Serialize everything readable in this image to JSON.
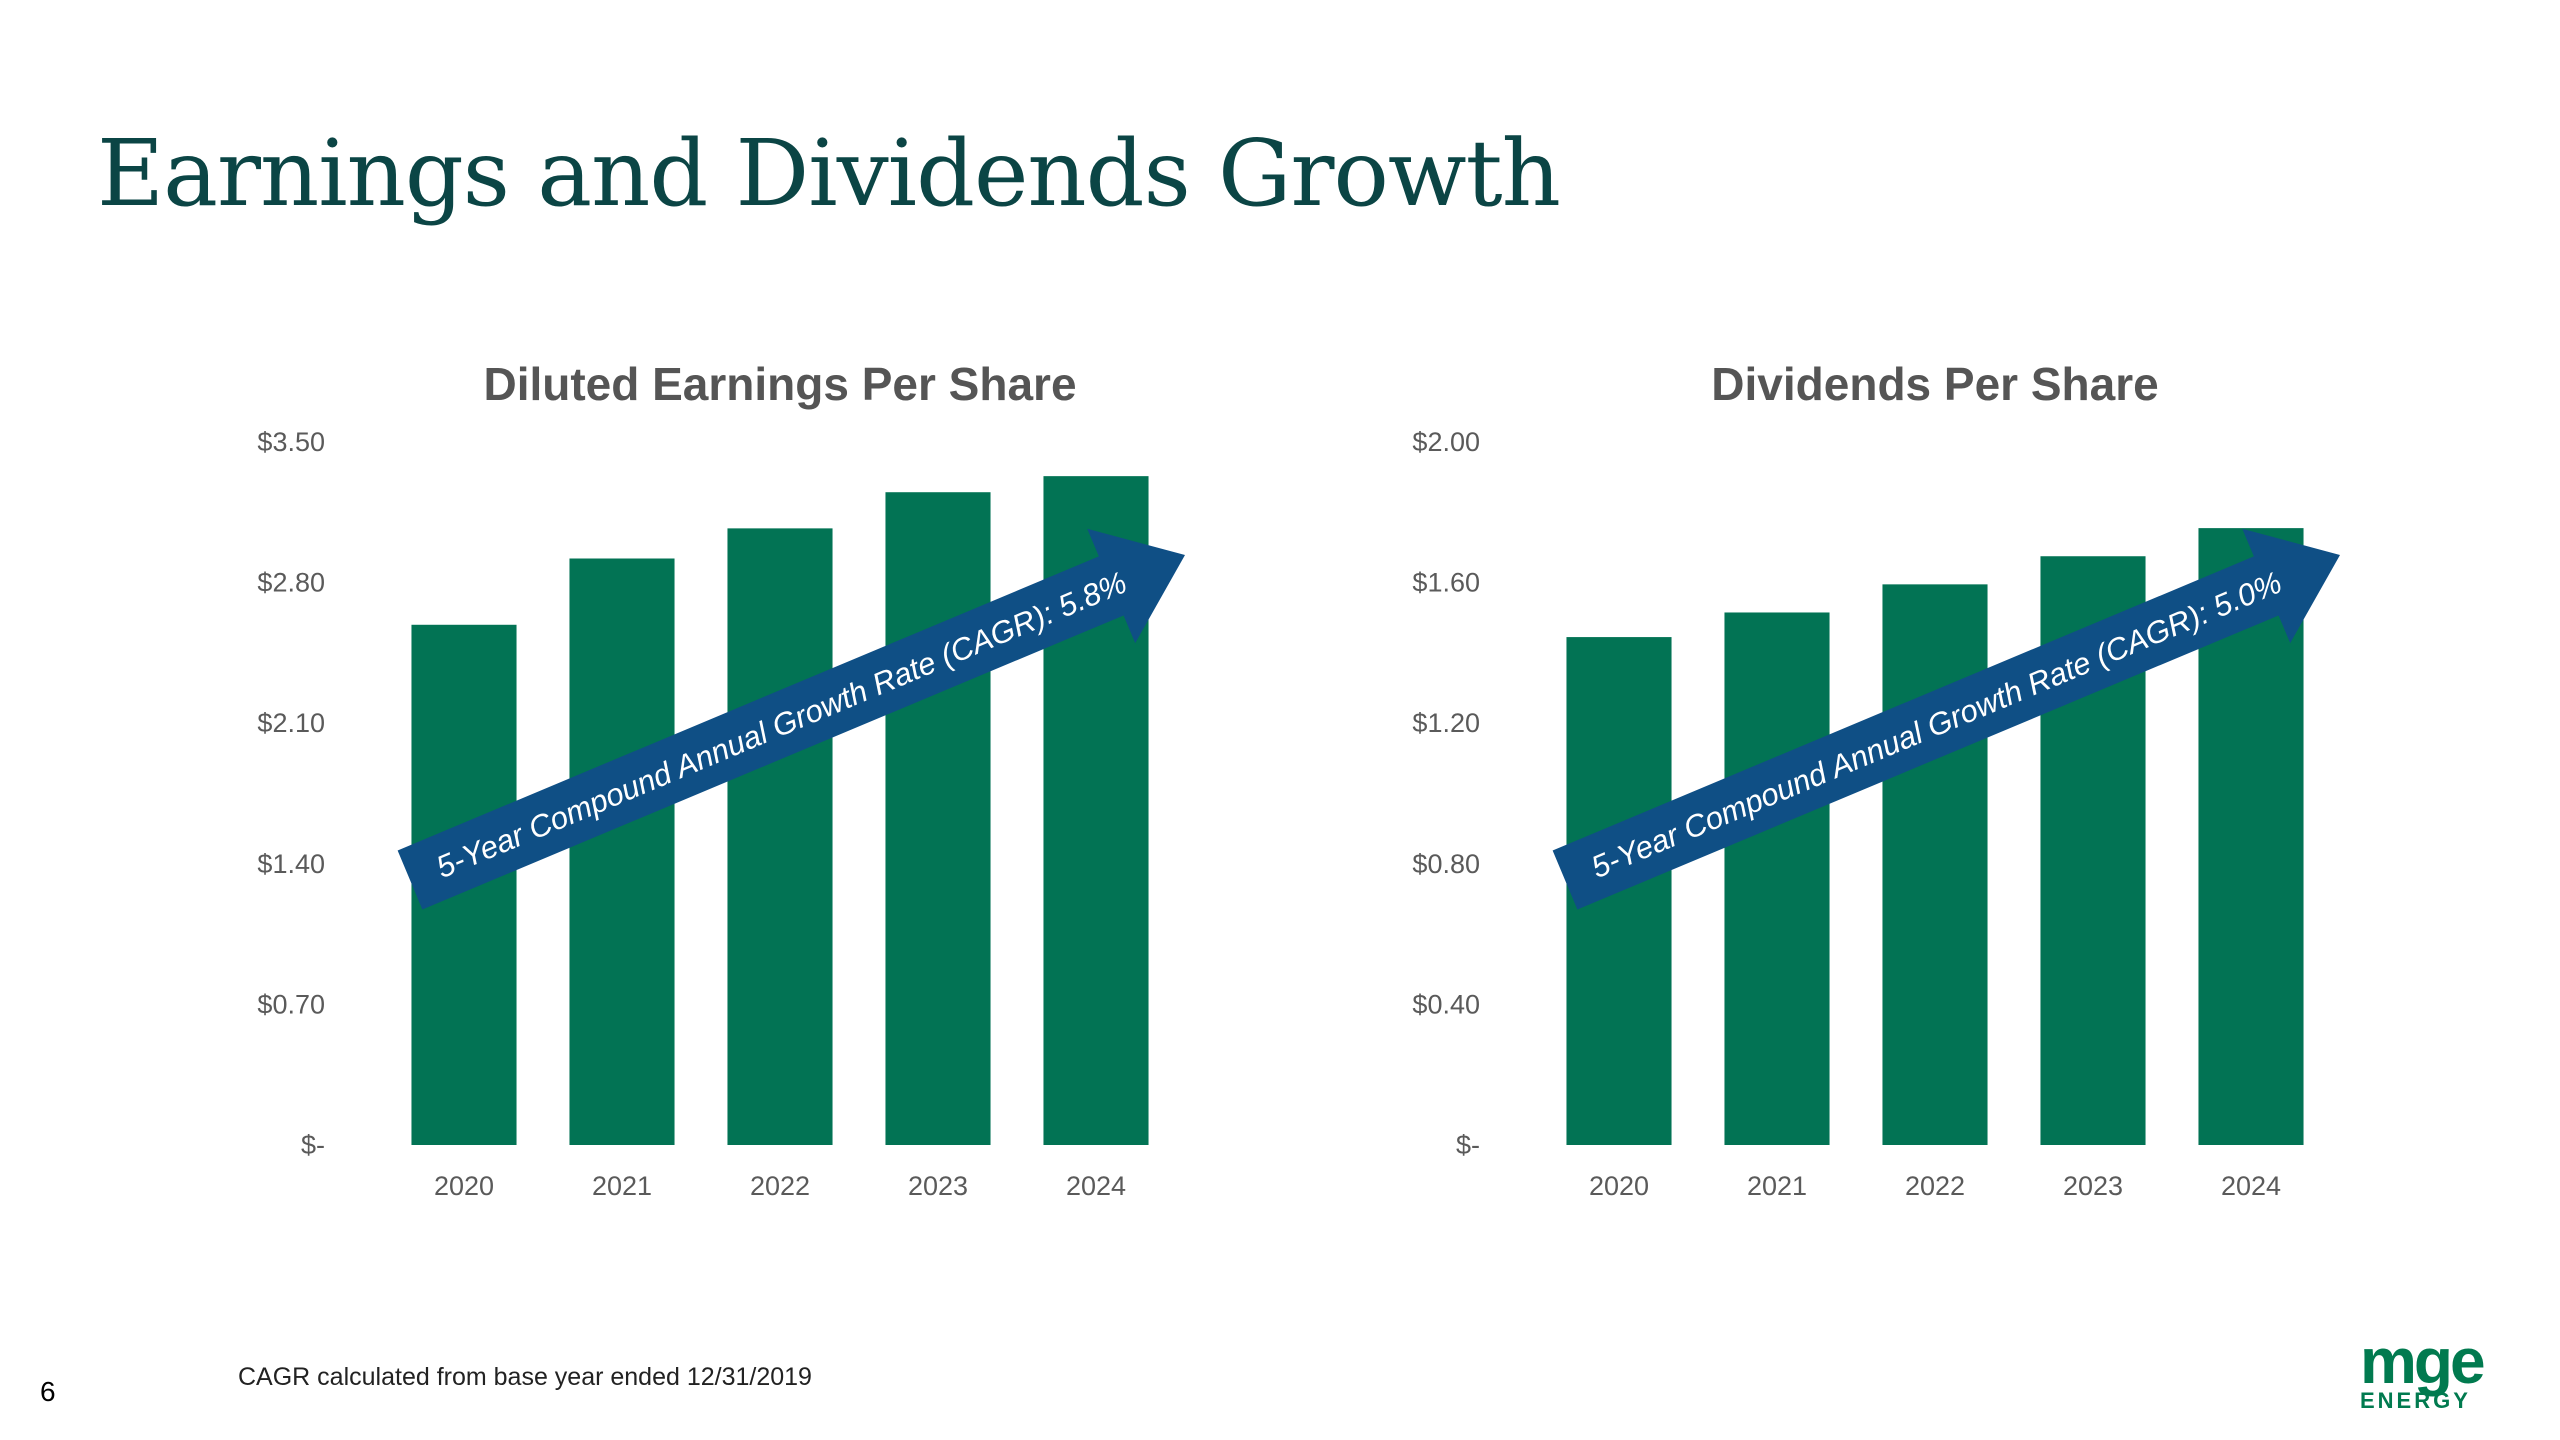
{
  "page": {
    "title": "Earnings and Dividends Growth",
    "page_number": "6",
    "footnote": "CAGR calculated from base year ended 12/31/2019",
    "logo": {
      "main": "mge",
      "sub": "ENERGY"
    }
  },
  "colors": {
    "bar": "#027354",
    "arrow": "#0f4f85",
    "title": "#0b4545"
  },
  "chart_data": [
    {
      "type": "bar",
      "title": "Diluted Earnings Per Share",
      "categories": [
        "2020",
        "2021",
        "2022",
        "2023",
        "2024"
      ],
      "values": [
        2.59,
        2.92,
        3.07,
        3.25,
        3.33
      ],
      "ylim": [
        0,
        3.5
      ],
      "yticks": [
        "$-",
        "$0.70",
        "$1.40",
        "$2.10",
        "$2.80",
        "$3.50"
      ],
      "grid": false,
      "annotation": "5-Year Compound Annual Growth Rate (CAGR): 5.8%"
    },
    {
      "type": "bar",
      "title": "Dividends Per Share",
      "categories": [
        "2020",
        "2021",
        "2022",
        "2023",
        "2024"
      ],
      "values": [
        1.445,
        1.515,
        1.595,
        1.675,
        1.755
      ],
      "ylim": [
        0,
        2.0
      ],
      "yticks": [
        "$-",
        "$0.40",
        "$0.80",
        "$1.20",
        "$1.60",
        "$2.00"
      ],
      "grid": false,
      "annotation": "5-Year Compound Annual Growth Rate (CAGR): 5.0%"
    }
  ]
}
